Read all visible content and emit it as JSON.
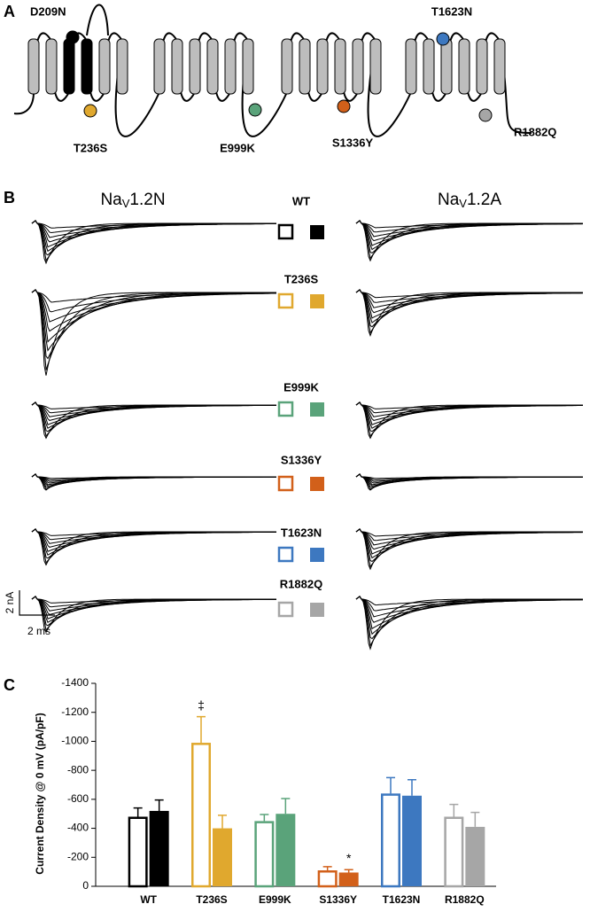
{
  "panels": {
    "a": "A",
    "b": "B",
    "c": "C"
  },
  "topology": {
    "mutations": [
      "D209N",
      "T236S",
      "E999K",
      "S1336Y",
      "T1623N",
      "R1882Q"
    ]
  },
  "traces": {
    "left_title": [
      "Na",
      "V",
      "1.2N"
    ],
    "right_title": [
      "Na",
      "V",
      "1.2A"
    ],
    "scale_current": "2 nA",
    "scale_time": "2 ms"
  },
  "chart_data": {
    "type": "bar",
    "y_label": "Current Density @ 0 mV (pA/pF)",
    "categories": [
      "WT",
      "T236S",
      "E999K",
      "S1336Y",
      "T1623N",
      "R1882Q"
    ],
    "colors": [
      "#000000",
      "#e0a82e",
      "#5aa37a",
      "#d2601a",
      "#3d78c0",
      "#a6a6a6"
    ],
    "series": [
      {
        "style": "open",
        "values": [
          -480,
          -990,
          -450,
          -110,
          -640,
          -480
        ],
        "errors": [
          60,
          180,
          45,
          25,
          110,
          85
        ]
      },
      {
        "style": "filled",
        "values": [
          -520,
          -400,
          -500,
          -95,
          -625,
          -410
        ],
        "errors": [
          75,
          90,
          105,
          20,
          110,
          100
        ]
      }
    ],
    "annotations": [
      {
        "text": "‡",
        "series": 0,
        "category": 1
      },
      {
        "text": "*",
        "series": 1,
        "category": 3
      }
    ],
    "ylim": [
      0,
      -1400
    ],
    "yticks": [
      -1400,
      -1200,
      -1000,
      -800,
      -600,
      -400,
      -200,
      0
    ]
  }
}
